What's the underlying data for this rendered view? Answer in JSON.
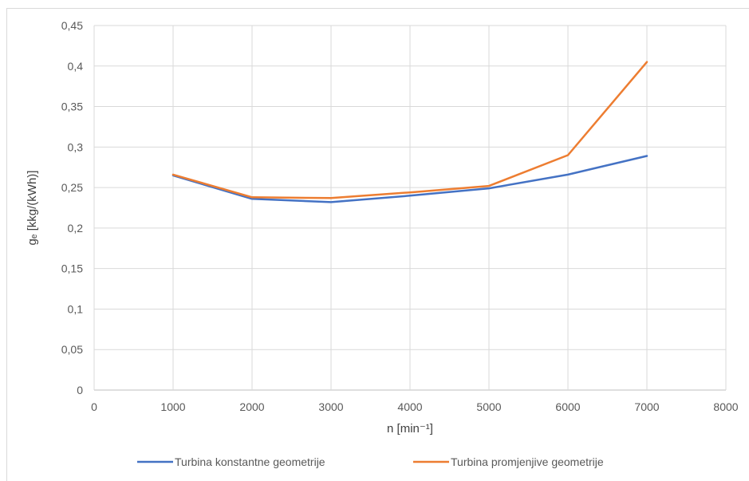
{
  "chart_data": {
    "type": "line",
    "title": "",
    "xlabel": "n [min⁻¹]",
    "ylabel": "gₑ [kkg/(kWh)]",
    "xlim": [
      0,
      8000
    ],
    "ylim": [
      0,
      0.45
    ],
    "x_ticks": [
      0,
      1000,
      2000,
      3000,
      4000,
      5000,
      6000,
      7000,
      8000
    ],
    "y_ticks": [
      0,
      0.05,
      0.1,
      0.15,
      0.2,
      0.25,
      0.3,
      0.35,
      0.4,
      0.45
    ],
    "x_tick_labels": [
      "0",
      "1000",
      "2000",
      "3000",
      "4000",
      "5000",
      "6000",
      "7000",
      "8000"
    ],
    "y_tick_labels": [
      "0",
      "0,05",
      "0,1",
      "0,15",
      "0,2",
      "0,25",
      "0,3",
      "0,35",
      "0,4",
      "0,45"
    ],
    "grid": true,
    "legend_position": "bottom",
    "x": [
      1000,
      2000,
      3000,
      4000,
      5000,
      6000,
      7000
    ],
    "series": [
      {
        "name": "Turbina konstantne geometrije",
        "color": "#4472c4",
        "values": [
          0.265,
          0.236,
          0.232,
          0.24,
          0.249,
          0.266,
          0.289
        ]
      },
      {
        "name": "Turbina promjenjive geometrije",
        "color": "#ed7d31",
        "values": [
          0.266,
          0.238,
          0.237,
          0.244,
          0.252,
          0.29,
          0.405
        ]
      }
    ]
  }
}
